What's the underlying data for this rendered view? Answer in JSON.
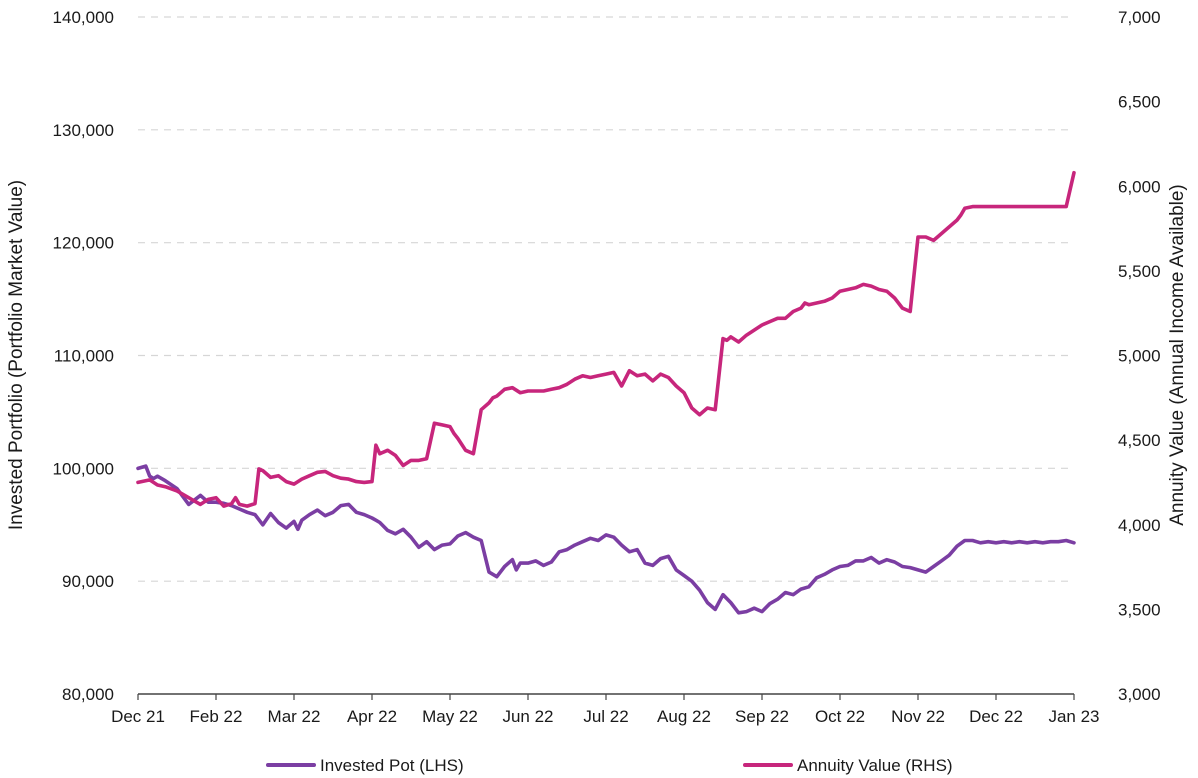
{
  "chart_data": {
    "type": "line",
    "title": "",
    "xlabel": "",
    "ylabel_left": "Invested Portfolio (Portfolio Market Value)",
    "ylabel_right": "Annuity Value (Annual Income Available)",
    "x_ticks": [
      "Dec 21",
      "Feb 22",
      "Mar 22",
      "Apr 22",
      "May 22",
      "Jun 22",
      "Jul 22",
      "Aug 22",
      "Sep 22",
      "Oct 22",
      "Nov 22",
      "Dec 22",
      "Jan 23"
    ],
    "ylim_left": [
      80000,
      140000
    ],
    "yticks_left": [
      "80,000",
      "90,000",
      "100,000",
      "110,000",
      "120,000",
      "130,000",
      "140,000"
    ],
    "ylim_right": [
      3000,
      7000
    ],
    "yticks_right": [
      "3,000",
      "3,500",
      "4,000",
      "4,500",
      "5,000",
      "5,500",
      "6,000",
      "6,500",
      "7,000"
    ],
    "grid": true,
    "legend_position": "bottom",
    "series": [
      {
        "name": "Invested Pot (LHS)",
        "axis": "left",
        "color": "#7b3ea3",
        "x": [
          0,
          0.1,
          0.15,
          0.2,
          0.25,
          0.35,
          0.5,
          0.65,
          0.8,
          0.9,
          1.0,
          1.1,
          1.2,
          1.3,
          1.4,
          1.5,
          1.6,
          1.7,
          1.8,
          1.9,
          2.0,
          2.05,
          2.1,
          2.2,
          2.3,
          2.4,
          2.5,
          2.6,
          2.7,
          2.8,
          2.9,
          3.0,
          3.05,
          3.1,
          3.2,
          3.3,
          3.4,
          3.5,
          3.6,
          3.7,
          3.8,
          3.9,
          4.0,
          4.1,
          4.2,
          4.3,
          4.4,
          4.5,
          4.6,
          4.7,
          4.8,
          4.85,
          4.9,
          5.0,
          5.1,
          5.2,
          5.3,
          5.4,
          5.5,
          5.6,
          5.7,
          5.8,
          5.9,
          6.0,
          6.1,
          6.2,
          6.3,
          6.4,
          6.5,
          6.6,
          6.7,
          6.8,
          6.9,
          7.0,
          7.1,
          7.2,
          7.3,
          7.4,
          7.5,
          7.6,
          7.7,
          7.8,
          7.9,
          8.0,
          8.1,
          8.2,
          8.3,
          8.4,
          8.5,
          8.6,
          8.7,
          8.8,
          8.9,
          9.0,
          9.1,
          9.2,
          9.3,
          9.4,
          9.5,
          9.6,
          9.7,
          9.8,
          9.9,
          10.0,
          10.1,
          10.2,
          10.3,
          10.4,
          10.5,
          10.6,
          10.7,
          10.8,
          10.9,
          11.0,
          11.1,
          11.2,
          11.3,
          11.4,
          11.5,
          11.6,
          11.7,
          11.8,
          11.9,
          12.0
        ],
        "values": [
          99990,
          100200,
          99300,
          99100,
          99300,
          98900,
          98200,
          96800,
          97600,
          97000,
          97000,
          96900,
          96700,
          96400,
          96100,
          95900,
          95000,
          96000,
          95200,
          94700,
          95300,
          94600,
          95400,
          95900,
          96300,
          95800,
          96100,
          96700,
          96800,
          96100,
          95900,
          95600,
          95400,
          95200,
          94500,
          94200,
          94600,
          93900,
          93000,
          93500,
          92800,
          93200,
          93300,
          94000,
          94300,
          93900,
          93600,
          90800,
          90400,
          91300,
          91900,
          91000,
          91600,
          91600,
          91800,
          91400,
          91700,
          92600,
          92800,
          93200,
          93500,
          93800,
          93600,
          94100,
          93900,
          93200,
          92600,
          92800,
          91600,
          91400,
          92000,
          92200,
          91000,
          90500,
          90000,
          89200,
          88100,
          87500,
          88800,
          88100,
          87200,
          87300,
          87600,
          87300,
          88000,
          88400,
          89000,
          88800,
          89300,
          89500,
          90300,
          90600,
          91000,
          91300,
          91400,
          91800,
          91800,
          92100,
          91600,
          91900,
          91700,
          91300,
          91200,
          91000,
          90800,
          91300,
          91800,
          92300,
          93100,
          93600,
          93600,
          93400,
          93500,
          93400,
          93500,
          93400,
          93500,
          93400,
          93500,
          93400,
          93500,
          93500,
          93600,
          93400
        ]
      },
      {
        "name": "Annuity Value (RHS)",
        "axis": "right",
        "color": "#c7267c",
        "x": [
          0,
          0.15,
          0.25,
          0.35,
          0.5,
          0.65,
          0.8,
          0.9,
          1.0,
          1.1,
          1.2,
          1.25,
          1.3,
          1.4,
          1.5,
          1.55,
          1.6,
          1.7,
          1.8,
          1.9,
          2.0,
          2.1,
          2.2,
          2.3,
          2.4,
          2.5,
          2.6,
          2.7,
          2.8,
          2.9,
          3.0,
          3.05,
          3.1,
          3.2,
          3.3,
          3.4,
          3.5,
          3.6,
          3.7,
          3.8,
          3.9,
          4.0,
          4.05,
          4.1,
          4.2,
          4.3,
          4.4,
          4.5,
          4.55,
          4.6,
          4.7,
          4.8,
          4.9,
          5.0,
          5.1,
          5.2,
          5.3,
          5.4,
          5.5,
          5.6,
          5.7,
          5.8,
          5.9,
          6.0,
          6.1,
          6.2,
          6.3,
          6.4,
          6.5,
          6.6,
          6.7,
          6.8,
          6.9,
          7.0,
          7.1,
          7.2,
          7.3,
          7.4,
          7.5,
          7.55,
          7.6,
          7.7,
          7.8,
          7.9,
          8.0,
          8.1,
          8.2,
          8.3,
          8.4,
          8.5,
          8.55,
          8.6,
          8.7,
          8.8,
          8.9,
          9.0,
          9.1,
          9.2,
          9.3,
          9.4,
          9.5,
          9.6,
          9.7,
          9.8,
          9.9,
          10.0,
          10.1,
          10.2,
          10.3,
          10.4,
          10.5,
          10.55,
          10.6,
          10.7,
          10.8,
          10.9,
          11.0,
          11.1,
          11.2,
          11.3,
          11.4,
          11.45,
          11.5,
          11.6,
          11.7,
          11.8,
          11.9,
          12.0
        ],
        "values": [
          4250,
          4265,
          4235,
          4225,
          4200,
          4160,
          4120,
          4150,
          4160,
          4110,
          4125,
          4160,
          4120,
          4110,
          4125,
          4330,
          4320,
          4280,
          4290,
          4255,
          4240,
          4270,
          4290,
          4310,
          4315,
          4290,
          4275,
          4270,
          4255,
          4250,
          4255,
          4470,
          4420,
          4440,
          4410,
          4350,
          4380,
          4380,
          4390,
          4600,
          4590,
          4580,
          4540,
          4510,
          4440,
          4420,
          4680,
          4720,
          4750,
          4760,
          4800,
          4810,
          4780,
          4790,
          4790,
          4790,
          4800,
          4810,
          4830,
          4860,
          4880,
          4870,
          4880,
          4890,
          4900,
          4820,
          4910,
          4880,
          4890,
          4850,
          4890,
          4870,
          4820,
          4780,
          4690,
          4650,
          4690,
          4680,
          5100,
          5090,
          5110,
          5080,
          5120,
          5150,
          5180,
          5200,
          5220,
          5220,
          5260,
          5280,
          5310,
          5300,
          5310,
          5320,
          5340,
          5380,
          5390,
          5400,
          5420,
          5410,
          5390,
          5380,
          5340,
          5280,
          5260,
          5700,
          5700,
          5680,
          5720,
          5760,
          5800,
          5830,
          5870,
          5880,
          5880,
          5880,
          5880,
          5880,
          5880,
          5880,
          5880,
          5880,
          5880,
          5880,
          5880,
          5880,
          5880,
          6080
        ]
      }
    ]
  },
  "legend": {
    "items": [
      {
        "label": "Invested Pot (LHS)",
        "color": "#7b3ea3"
      },
      {
        "label": "Annuity Value (RHS)",
        "color": "#c7267c"
      }
    ]
  }
}
